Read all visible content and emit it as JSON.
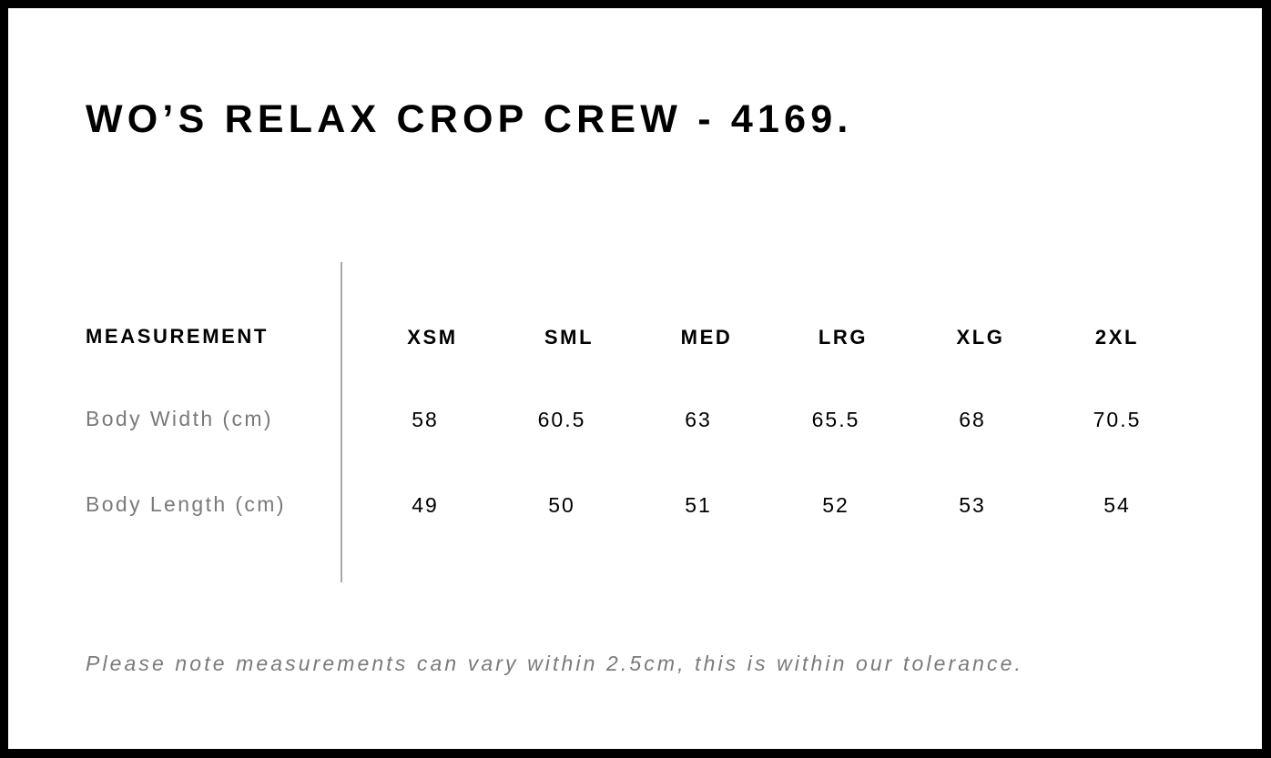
{
  "title": "WO’S RELAX CROP CREW - 4169.",
  "table": {
    "header_label": "MEASUREMENT",
    "sizes": [
      "XSM",
      "SML",
      "MED",
      "LRG",
      "XLG",
      "2XL"
    ],
    "rows": [
      {
        "label": "Body Width (cm)",
        "values": [
          "58",
          "60.5",
          "63",
          "65.5",
          "68",
          "70.5"
        ]
      },
      {
        "label": "Body Length (cm)",
        "values": [
          "49",
          "50",
          "51",
          "52",
          "53",
          "54"
        ]
      }
    ]
  },
  "note": "Please note measurements can vary within 2.5cm, this is within our tolerance."
}
